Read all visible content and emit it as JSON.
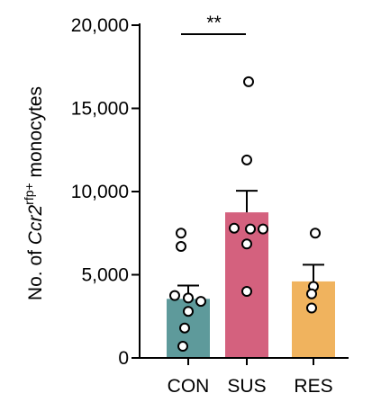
{
  "chart_data": {
    "type": "bar",
    "categories": [
      "CON",
      "SUS",
      "RES"
    ],
    "values": [
      3550,
      8750,
      4600
    ],
    "errors": [
      800,
      1300,
      1000
    ],
    "colors": [
      "#5e9a9b",
      "#d4617e",
      "#f0b35e"
    ],
    "points": [
      [
        7500,
        6700,
        3750,
        3600,
        3400,
        2800,
        1800,
        700
      ],
      [
        16600,
        11900,
        7800,
        7750,
        7750,
        6850,
        4000
      ],
      [
        7500,
        4300,
        3850,
        3000
      ]
    ],
    "ylabel_prefix": "No. of ",
    "ylabel_gene": "Ccr2",
    "ylabel_sup": "rfp+",
    "ylabel_suffix": " monocytes",
    "yticks": [
      0,
      5000,
      10000,
      15000,
      20000
    ],
    "ytick_labels": [
      "0",
      "5,000",
      "10,000",
      "15,000",
      "20,000"
    ],
    "ylim": [
      0,
      20000
    ],
    "significance": {
      "label": "**",
      "from": "CON",
      "to": "SUS"
    }
  }
}
